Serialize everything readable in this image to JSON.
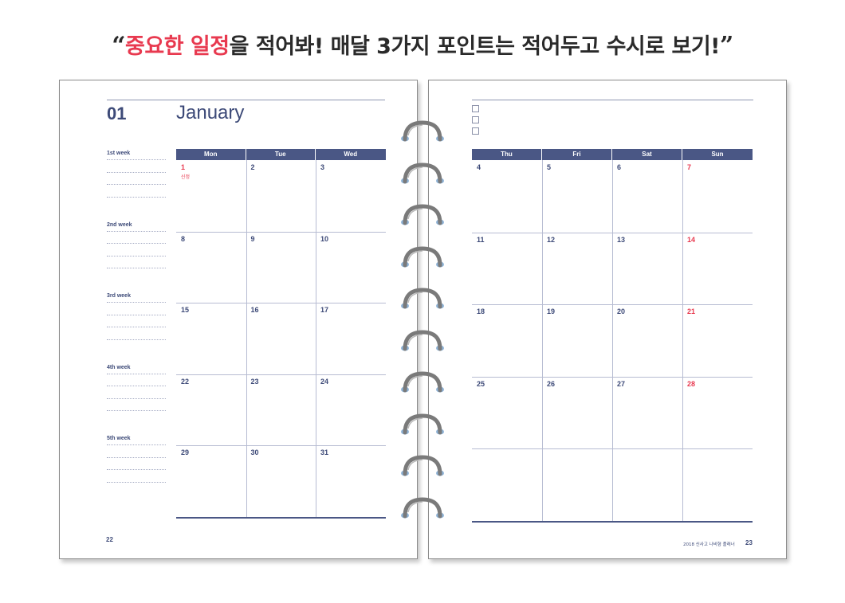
{
  "headline": {
    "open_quote": "“",
    "accent_text": "중요한 일정",
    "rest_text": "을 적어봐! 매달 3가지 포인트는 적어두고 수시로 보기!",
    "close_quote": "”"
  },
  "left_page": {
    "month_number": "01",
    "month_name": "January",
    "weeks": [
      "1st week",
      "2nd week",
      "3rd week",
      "4th week",
      "5th week"
    ],
    "headers": [
      "Mon",
      "Tue",
      "Wed"
    ],
    "rows": [
      [
        {
          "d": "1",
          "red": true,
          "note": "신정"
        },
        {
          "d": "2"
        },
        {
          "d": "3"
        }
      ],
      [
        {
          "d": "8"
        },
        {
          "d": "9"
        },
        {
          "d": "10"
        }
      ],
      [
        {
          "d": "15"
        },
        {
          "d": "16"
        },
        {
          "d": "17"
        }
      ],
      [
        {
          "d": "22"
        },
        {
          "d": "23"
        },
        {
          "d": "24"
        }
      ],
      [
        {
          "d": "29"
        },
        {
          "d": "30"
        },
        {
          "d": "31"
        }
      ]
    ],
    "page_number": "22"
  },
  "right_page": {
    "checkbox_count": 3,
    "headers": [
      "Thu",
      "Fri",
      "Sat",
      "Sun"
    ],
    "rows": [
      [
        {
          "d": "4"
        },
        {
          "d": "5"
        },
        {
          "d": "6"
        },
        {
          "d": "7",
          "red": true
        }
      ],
      [
        {
          "d": "11"
        },
        {
          "d": "12"
        },
        {
          "d": "13"
        },
        {
          "d": "14",
          "red": true
        }
      ],
      [
        {
          "d": "18"
        },
        {
          "d": "19"
        },
        {
          "d": "20"
        },
        {
          "d": "21",
          "red": true
        }
      ],
      [
        {
          "d": "25"
        },
        {
          "d": "26"
        },
        {
          "d": "27"
        },
        {
          "d": "28",
          "red": true
        }
      ],
      [
        {
          "d": ""
        },
        {
          "d": ""
        },
        {
          "d": ""
        },
        {
          "d": ""
        }
      ]
    ],
    "footer_text": "2018 신사고 나비형 플래너",
    "page_number": "23"
  },
  "colors": {
    "navy": "#3d4a78",
    "header_bar": "#4a5785",
    "holiday_red": "#e8394f",
    "ring_gray": "#7a7a7a",
    "hole_blue": "#8fb4d8"
  },
  "ring_count": 10
}
